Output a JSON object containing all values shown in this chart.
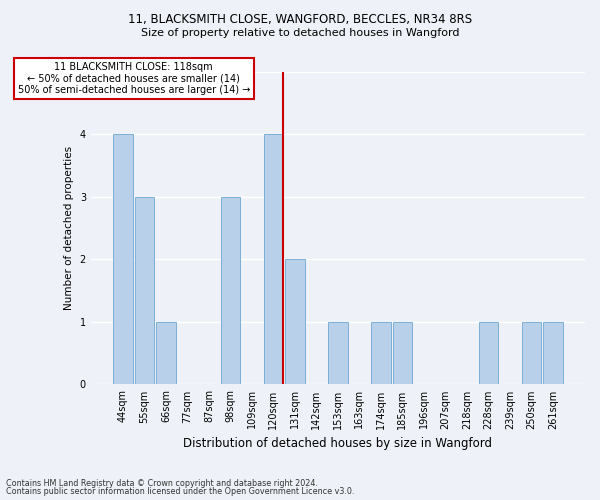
{
  "title1": "11, BLACKSMITH CLOSE, WANGFORD, BECCLES, NR34 8RS",
  "title2": "Size of property relative to detached houses in Wangford",
  "xlabel": "Distribution of detached houses by size in Wangford",
  "ylabel": "Number of detached properties",
  "footnote1": "Contains HM Land Registry data © Crown copyright and database right 2024.",
  "footnote2": "Contains public sector information licensed under the Open Government Licence v3.0.",
  "categories": [
    "44sqm",
    "55sqm",
    "66sqm",
    "77sqm",
    "87sqm",
    "98sqm",
    "109sqm",
    "120sqm",
    "131sqm",
    "142sqm",
    "153sqm",
    "163sqm",
    "174sqm",
    "185sqm",
    "196sqm",
    "207sqm",
    "218sqm",
    "228sqm",
    "239sqm",
    "250sqm",
    "261sqm"
  ],
  "values": [
    4,
    3,
    1,
    0,
    0,
    3,
    0,
    4,
    2,
    0,
    1,
    0,
    1,
    1,
    0,
    0,
    0,
    1,
    0,
    1,
    1
  ],
  "bar_color": "#b8d0ea",
  "bar_edge_color": "#7aafd4",
  "highlight_line_color": "#cc0000",
  "ylim": [
    0,
    5
  ],
  "yticks": [
    0,
    1,
    2,
    3,
    4,
    5
  ],
  "annotation_title": "11 BLACKSMITH CLOSE: 118sqm",
  "annotation_line1": "← 50% of detached houses are smaller (14)",
  "annotation_line2": "50% of semi-detached houses are larger (14) →",
  "annotation_box_color": "#ffffff",
  "annotation_box_edge_color": "#cc0000",
  "bg_color": "#eef2f8"
}
